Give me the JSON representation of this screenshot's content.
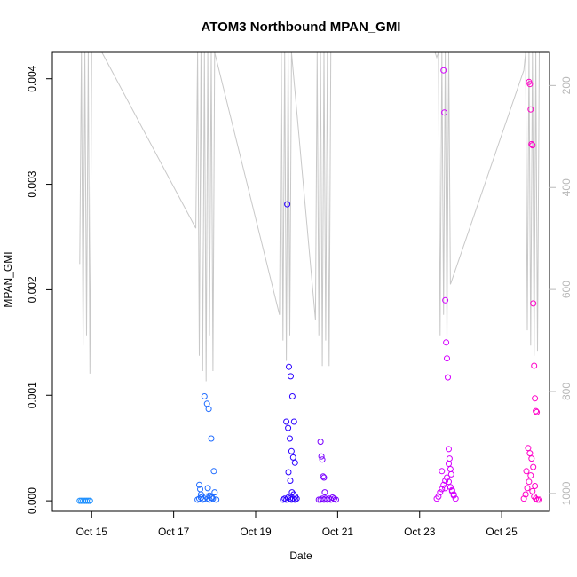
{
  "chart_data": {
    "type": "scatter",
    "title": "ATOM3 Northbound MPAN_GMI",
    "xlabel": "Date",
    "ylabel": "MPAN_GMI",
    "x_ticks": [
      "Oct 15",
      "Oct 17",
      "Oct 19",
      "Oct 21",
      "Oct 23",
      "Oct 25"
    ],
    "y_ticks": [
      "0.000",
      "0.001",
      "0.002",
      "0.003",
      "0.004"
    ],
    "y2_ticks": [
      "200",
      "400",
      "600",
      "800",
      "1000"
    ],
    "xlim": [
      "2016-10-14 01:00",
      "2016-10-26 04:00"
    ],
    "ylim": [
      -0.0001,
      0.00425
    ],
    "y2lim": [
      1035,
      135
    ],
    "grid": false,
    "legend": "none",
    "colors": {
      "points_early": "#1e90ff",
      "points_mid": "#0000ff",
      "points_late": "#ff00ff",
      "altitude_line": "#c8c8c8",
      "axis": "#000000",
      "right_axis": "#b8b8b8"
    },
    "series": [
      {
        "group": "Oct 14-15 flight",
        "color": "#1e90ff",
        "x": [
          "2016-10-14 17:00",
          "2016-10-14 18:00",
          "2016-10-14 19:00",
          "2016-10-14 20:00",
          "2016-10-14 21:00",
          "2016-10-14 22:00",
          "2016-10-14 23:00"
        ],
        "y": [
          0.0,
          0.0,
          0.0,
          0.0,
          0.0,
          0.0,
          0.0
        ]
      },
      {
        "group": "Oct 17-18 flight",
        "color": "#1e6bff",
        "x": [
          "2016-10-17 14:00",
          "2016-10-17 15:00",
          "2016-10-17 16:00",
          "2016-10-17 17:00",
          "2016-10-17 18:00",
          "2016-10-17 19:00",
          "2016-10-17 20:00",
          "2016-10-17 21:00",
          "2016-10-17 22:00",
          "2016-10-17 23:00",
          "2016-10-18 00:00",
          "2016-10-18 01:00",
          "2016-10-17 15:00",
          "2016-10-17 15:30",
          "2016-10-17 16:00",
          "2016-10-17 18:00",
          "2016-10-17 19:30",
          "2016-10-17 20:30",
          "2016-10-17 22:00",
          "2016-10-17 23:30",
          "2016-10-17 19:00",
          "2016-10-17 20:00",
          "2016-10-17 21:00",
          "2016-10-17 22:30"
        ],
        "y": [
          1e-05,
          2e-05,
          3e-05,
          1e-05,
          2e-05,
          4e-05,
          2e-05,
          1e-05,
          3e-05,
          2e-05,
          8e-05,
          1e-05,
          0.00015,
          0.00011,
          6e-05,
          0.00099,
          0.00092,
          0.00087,
          0.00059,
          0.00028,
          4e-05,
          0.00012,
          5e-05,
          3e-05
        ]
      },
      {
        "group": "Oct 19-20 flight",
        "color": "#2a00ff",
        "x": [
          "2016-10-19 16:00",
          "2016-10-19 17:00",
          "2016-10-19 18:00",
          "2016-10-19 19:00",
          "2016-10-19 20:00",
          "2016-10-19 21:00",
          "2016-10-19 22:00",
          "2016-10-19 23:00",
          "2016-10-20 00:00",
          "2016-10-19 18:30",
          "2016-10-19 19:30",
          "2016-10-19 20:30",
          "2016-10-19 21:30",
          "2016-10-19 22:30",
          "2016-10-19 18:00",
          "2016-10-19 19:00",
          "2016-10-19 20:00",
          "2016-10-19 21:00",
          "2016-10-19 22:00",
          "2016-10-19 23:00",
          "2016-10-19 19:15",
          "2016-10-19 20:15",
          "2016-10-19 21:15",
          "2016-10-19 22:15",
          "2016-10-19 23:15"
        ],
        "y": [
          1e-05,
          2e-05,
          1e-05,
          3e-05,
          2e-05,
          1e-05,
          2e-05,
          1e-05,
          2e-05,
          0.00281,
          0.00127,
          0.00118,
          0.00099,
          0.00075,
          0.00075,
          0.00069,
          0.00059,
          0.00047,
          0.00041,
          0.00036,
          0.00027,
          0.00019,
          8e-05,
          6e-05,
          4e-05
        ]
      },
      {
        "group": "Oct 20-21 flight",
        "color": "#7a00ff",
        "x": [
          "2016-10-20 13:00",
          "2016-10-20 14:00",
          "2016-10-20 15:00",
          "2016-10-20 16:00",
          "2016-10-20 17:00",
          "2016-10-20 18:00",
          "2016-10-20 19:00",
          "2016-10-20 20:00",
          "2016-10-20 21:00",
          "2016-10-20 22:00",
          "2016-10-20 23:00",
          "2016-10-20 14:00",
          "2016-10-20 14:30",
          "2016-10-20 15:00",
          "2016-10-20 15:30",
          "2016-10-20 16:00",
          "2016-10-20 16:30"
        ],
        "y": [
          1e-05,
          1e-05,
          2e-05,
          1e-05,
          2e-05,
          1e-05,
          2e-05,
          1e-05,
          3e-05,
          2e-05,
          1e-05,
          0.00056,
          0.00042,
          0.00039,
          0.00023,
          0.00022,
          8e-05
        ]
      },
      {
        "group": "Oct 23-24 flight",
        "color": "#d400ff",
        "x": [
          "2016-10-23 10:00",
          "2016-10-23 11:00",
          "2016-10-23 12:00",
          "2016-10-23 13:00",
          "2016-10-23 14:00",
          "2016-10-23 15:00",
          "2016-10-23 16:00",
          "2016-10-23 17:00",
          "2016-10-23 18:00",
          "2016-10-23 19:00",
          "2016-10-23 20:00",
          "2016-10-23 21:00",
          "2016-10-23 14:00",
          "2016-10-23 14:30",
          "2016-10-23 15:00",
          "2016-10-23 15:30",
          "2016-10-23 16:00",
          "2016-10-23 16:30",
          "2016-10-23 17:00",
          "2016-10-23 17:30",
          "2016-10-23 18:00",
          "2016-10-23 18:30",
          "2016-10-23 13:00",
          "2016-10-23 15:00",
          "2016-10-23 17:00",
          "2016-10-23 19:00",
          "2016-10-23 20:00"
        ],
        "y": [
          2e-05,
          4e-05,
          8e-05,
          0.00011,
          0.00015,
          0.00019,
          0.00022,
          0.00018,
          0.00013,
          9e-05,
          5e-05,
          2e-05,
          0.00408,
          0.00368,
          0.0019,
          0.0015,
          0.00135,
          0.00117,
          0.00049,
          0.0004,
          0.0003,
          0.00025,
          0.00028,
          0.00012,
          0.00035,
          0.0001,
          6e-05
        ]
      },
      {
        "group": "Oct 25-26 flight",
        "color": "#ff00c8",
        "x": [
          "2016-10-25 13:00",
          "2016-10-25 14:00",
          "2016-10-25 15:00",
          "2016-10-25 16:00",
          "2016-10-25 17:00",
          "2016-10-25 18:00",
          "2016-10-25 19:00",
          "2016-10-25 20:00",
          "2016-10-25 21:00",
          "2016-10-25 22:00",
          "2016-10-25 16:00",
          "2016-10-25 16:30",
          "2016-10-25 17:00",
          "2016-10-25 17:30",
          "2016-10-25 18:00",
          "2016-10-25 18:30",
          "2016-10-25 19:00",
          "2016-10-25 19:30",
          "2016-10-25 20:00",
          "2016-10-25 20:30",
          "2016-10-25 14:30",
          "2016-10-25 15:30",
          "2016-10-25 16:30",
          "2016-10-25 17:30",
          "2016-10-25 18:30",
          "2016-10-25 19:30"
        ],
        "y": [
          2e-05,
          6e-05,
          0.00012,
          0.00018,
          0.00024,
          9e-05,
          4e-05,
          2e-05,
          1e-05,
          1e-05,
          0.00397,
          0.00395,
          0.00371,
          0.00338,
          0.00337,
          0.00187,
          0.00128,
          0.00097,
          0.00085,
          0.00084,
          0.00028,
          0.0005,
          0.00045,
          0.0004,
          0.00032,
          0.00014
        ]
      }
    ],
    "altitude_trace": {
      "color": "#c8c8c8",
      "x": [
        "2016-10-14 17:00",
        "2016-10-14 18:00",
        "2016-10-14 19:00",
        "2016-10-14 20:00",
        "2016-10-14 21:00",
        "2016-10-14 22:00",
        "2016-10-14 23:00",
        "2016-10-15 00:00",
        "2016-10-15 06:00",
        "2016-10-17 13:00",
        "2016-10-17 14:00",
        "2016-10-17 15:00",
        "2016-10-17 16:00",
        "2016-10-17 17:00",
        "2016-10-17 18:00",
        "2016-10-17 19:00",
        "2016-10-17 20:00",
        "2016-10-17 21:00",
        "2016-10-17 22:00",
        "2016-10-17 23:00",
        "2016-10-18 00:00",
        "2016-10-19 14:00",
        "2016-10-19 15:00",
        "2016-10-19 16:00",
        "2016-10-19 17:00",
        "2016-10-19 18:00",
        "2016-10-19 19:00",
        "2016-10-19 20:00",
        "2016-10-19 21:00",
        "2016-10-20 11:00",
        "2016-10-20 12:00",
        "2016-10-20 13:00",
        "2016-10-20 14:00",
        "2016-10-20 15:00",
        "2016-10-20 16:00",
        "2016-10-20 17:00",
        "2016-10-20 18:00",
        "2016-10-20 19:00",
        "2016-10-20 20:00",
        "2016-10-23 08:00",
        "2016-10-23 09:00",
        "2016-10-23 10:00",
        "2016-10-23 11:00",
        "2016-10-23 12:00",
        "2016-10-23 13:00",
        "2016-10-23 14:00",
        "2016-10-23 15:00",
        "2016-10-23 16:00",
        "2016-10-23 17:00",
        "2016-10-23 18:00",
        "2016-10-25 13:00",
        "2016-10-25 14:00",
        "2016-10-25 15:00",
        "2016-10-25 16:00",
        "2016-10-25 17:00",
        "2016-10-25 18:00",
        "2016-10-25 19:00",
        "2016-10-25 20:00",
        "2016-10-25 21:00",
        "2016-10-25 22:00",
        "2016-10-25 23:00"
      ],
      "y_hpa": [
        550,
        135,
        710,
        135,
        690,
        135,
        765,
        135,
        135,
        480,
        135,
        730,
        135,
        760,
        135,
        780,
        135,
        690,
        135,
        760,
        135,
        650,
        135,
        700,
        135,
        740,
        135,
        690,
        135,
        660,
        135,
        690,
        135,
        750,
        135,
        700,
        135,
        750,
        135,
        135,
        135,
        145,
        135,
        690,
        135,
        650,
        135,
        700,
        135,
        590,
        170,
        135,
        680,
        135,
        710,
        135,
        730,
        135,
        720,
        135,
        135
      ]
    }
  }
}
